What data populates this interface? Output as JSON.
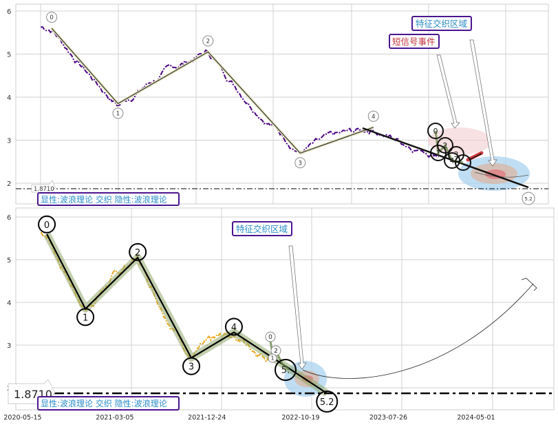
{
  "chart_data": {
    "type": "line",
    "title": "",
    "xlabel": "",
    "ylabel": "",
    "colors": {
      "top_price": "#4b0082",
      "bottom_price": "#e8a820",
      "wave_fill": "#8fa86a",
      "box_border": "#4b1490",
      "blue_text": "#2a8cc8",
      "red_text": "#c0303a"
    },
    "x_ticks": [
      "2020-05-15",
      "2021-03-05",
      "2021-12-24",
      "2022-10-19",
      "2023-07-26",
      "2024-05-01"
    ],
    "top_y_ticks": [
      "2",
      "3",
      "4",
      "5",
      "6"
    ],
    "bottom_y_ticks": [
      "2",
      "3",
      "4",
      "5",
      "6"
    ],
    "ylim": [
      1.6,
      6.2
    ],
    "wave_points": [
      {
        "label": "0",
        "date": "2020-07-31",
        "value": 5.6
      },
      {
        "label": "1",
        "date": "2020-12-01",
        "value": 3.85
      },
      {
        "label": "2",
        "date": "2021-05-17",
        "value": 5.05
      },
      {
        "label": "3",
        "date": "2021-11-04",
        "value": 2.7
      },
      {
        "label": "4",
        "date": "2022-03-20",
        "value": 3.3
      },
      {
        "label": "5.2",
        "date": "2023-01-11",
        "value": 1.871
      }
    ],
    "mini_wave_labels": [
      "0",
      "1",
      "2",
      "3",
      "4"
    ],
    "bottom_mini_labels": [
      "0",
      "2",
      "1",
      "5."
    ],
    "price_end_date": "2022-07-20",
    "level_value": 1.871,
    "level_label": "1.8710",
    "legend_text": "显性:波浪理论 交织 隐性:波浪理论",
    "annotations": {
      "feature_zone": "特征交织区域",
      "short_signal": "短信号事件"
    }
  }
}
